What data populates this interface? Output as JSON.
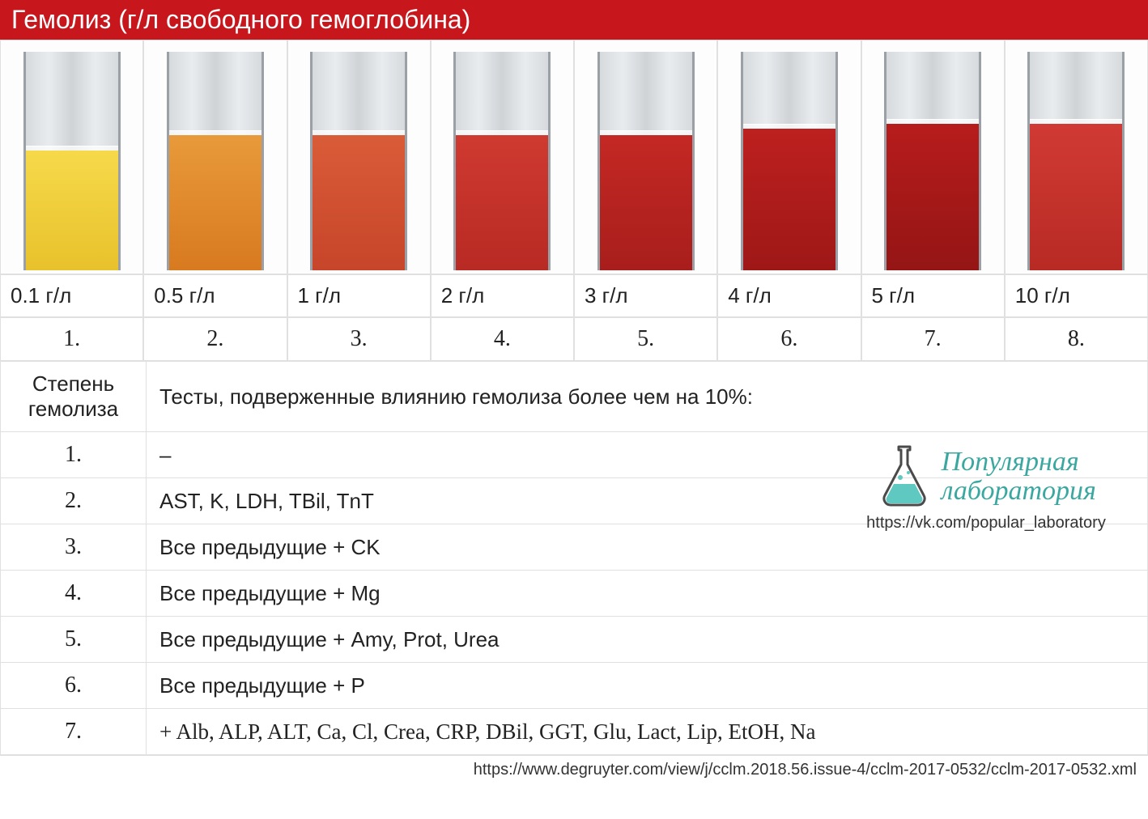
{
  "header": {
    "title": "Гемолиз (г/л свободного гемоглобина)"
  },
  "tubes": [
    {
      "label": "0.1 г/л",
      "num": "1.",
      "color_top": "#f6d94a",
      "color_bot": "#e8c22c",
      "fill_pct": 55
    },
    {
      "label": "0.5 г/л",
      "num": "2.",
      "color_top": "#e89a3a",
      "color_bot": "#d87a20",
      "fill_pct": 62
    },
    {
      "label": "1 г/л",
      "num": "3.",
      "color_top": "#d95c38",
      "color_bot": "#c7452a",
      "fill_pct": 62
    },
    {
      "label": "2 г/л",
      "num": "4.",
      "color_top": "#cf3a30",
      "color_bot": "#b82a24",
      "fill_pct": 62
    },
    {
      "label": "3 г/л",
      "num": "5.",
      "color_top": "#c42824",
      "color_bot": "#a81e1c",
      "fill_pct": 62
    },
    {
      "label": "4 г/л",
      "num": "6.",
      "color_top": "#bd201f",
      "color_bot": "#9e1817",
      "fill_pct": 65
    },
    {
      "label": "5 г/л",
      "num": "7.",
      "color_top": "#b71c1c",
      "color_bot": "#951515",
      "fill_pct": 67
    },
    {
      "label": "10 г/л",
      "num": "8.",
      "color_top": "#d13a34",
      "color_bot": "#b82a24",
      "fill_pct": 67
    }
  ],
  "tests_header": {
    "degree": "Степень гемолиза",
    "tests": "Тесты, подверженные влиянию гемолиза более чем на 10%:"
  },
  "tests_rows": [
    {
      "degree": "1.",
      "tests": "–"
    },
    {
      "degree": "2.",
      "tests": "AST, K, LDH, TBil, TnT"
    },
    {
      "degree": "3.",
      "tests": "Все предыдущие + CK"
    },
    {
      "degree": "4.",
      "tests": "Все предыдущие + Mg"
    },
    {
      "degree": "5.",
      "tests": "Все предыдущие + Amy, Prot, Urea"
    },
    {
      "degree": "6.",
      "tests": "Все предыдущие + P"
    },
    {
      "degree": "7.",
      "tests": "  + Alb, ALP, ALT, Ca, Cl, Crea, CRP, DBil, GGT, Glu, Lact, Lip, EtOH, Na"
    }
  ],
  "logo": {
    "line1": "Популярная",
    "line2": "лаборатория",
    "url": "https://vk.com/popular_laboratory",
    "flask_fill": "#5fc8c0",
    "flask_stroke": "#4a4a4a"
  },
  "source": "https://www.degruyter.com/view/j/cclm.2018.56.issue-4/cclm-2017-0532/cclm-2017-0532.xml",
  "colors": {
    "header_bg": "#c8161d",
    "border": "#e0e0e0",
    "text": "#222222"
  }
}
